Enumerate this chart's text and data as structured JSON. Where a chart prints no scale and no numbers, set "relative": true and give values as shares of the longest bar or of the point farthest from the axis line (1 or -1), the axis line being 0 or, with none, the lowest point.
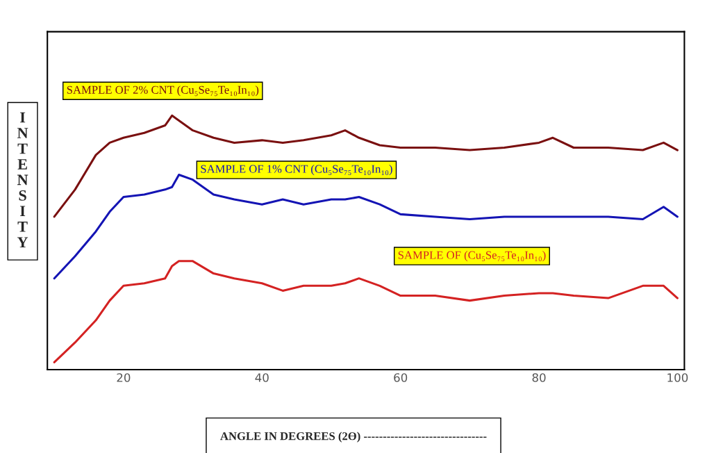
{
  "chart_data": {
    "type": "line",
    "relative": true,
    "xlabel": "ANGLE IN DEGREES (2Ө) --------------------------------",
    "ylabel": "INTENSITY",
    "x": [
      10,
      13,
      16,
      18,
      20,
      23,
      26,
      27,
      28,
      30,
      33,
      36,
      40,
      43,
      46,
      50,
      52,
      54,
      57,
      60,
      65,
      70,
      75,
      80,
      82,
      85,
      90,
      95,
      98,
      100
    ],
    "xlim": [
      9,
      101
    ],
    "xticks": [
      20,
      40,
      60,
      80,
      100
    ],
    "legend": false,
    "grid": false,
    "series": [
      {
        "name": "SAMPLE OF 2% CNT (Cu₅Se₇₅Te₁₀In₁₀)",
        "color": "#7a1010",
        "values": [
          0.59,
          0.7,
          0.84,
          0.89,
          0.91,
          0.93,
          0.96,
          1.0,
          0.98,
          0.94,
          0.91,
          0.89,
          0.9,
          0.89,
          0.9,
          0.92,
          0.94,
          0.91,
          0.88,
          0.87,
          0.87,
          0.86,
          0.87,
          0.89,
          0.91,
          0.87,
          0.87,
          0.86,
          0.89,
          0.86
        ]
      },
      {
        "name": "SAMPLE OF 1% CNT (Cu₅Se₇₅Te₁₀In₁₀)",
        "color": "#1414b4",
        "values": [
          0.34,
          0.43,
          0.53,
          0.61,
          0.67,
          0.68,
          0.7,
          0.71,
          0.76,
          0.74,
          0.68,
          0.66,
          0.64,
          0.66,
          0.64,
          0.66,
          0.66,
          0.67,
          0.64,
          0.6,
          0.59,
          0.58,
          0.59,
          0.59,
          0.59,
          0.59,
          0.59,
          0.58,
          0.63,
          0.59
        ]
      },
      {
        "name": "SAMPLE OF (Cu₅Se₇₅Te₁₀In₁₀)",
        "color": "#d42222",
        "values": [
          0,
          0.08,
          0.17,
          0.25,
          0.31,
          0.32,
          0.34,
          0.39,
          0.41,
          0.41,
          0.36,
          0.34,
          0.32,
          0.29,
          0.31,
          0.31,
          0.32,
          0.34,
          0.31,
          0.27,
          0.27,
          0.25,
          0.27,
          0.28,
          0.28,
          0.27,
          0.26,
          0.31,
          0.31,
          0.26
        ]
      }
    ]
  }
}
